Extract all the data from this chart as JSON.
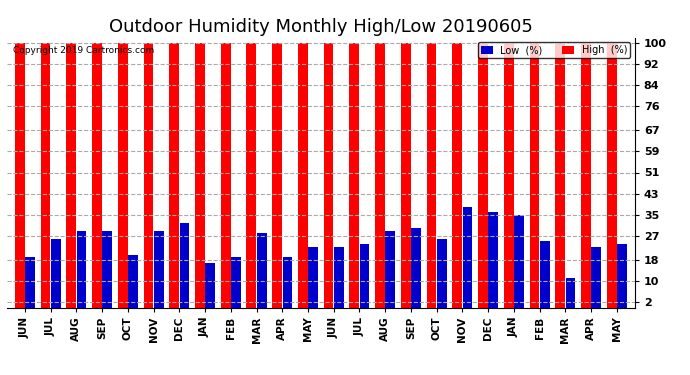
{
  "title": "Outdoor Humidity Monthly High/Low 20190605",
  "copyright": "Copyright 2019 Cartronics.com",
  "categories": [
    "JUN",
    "JUL",
    "AUG",
    "SEP",
    "OCT",
    "NOV",
    "DEC",
    "JAN",
    "FEB",
    "MAR",
    "APR",
    "MAY",
    "JUN",
    "JUL",
    "AUG",
    "SEP",
    "OCT",
    "NOV",
    "DEC",
    "JAN",
    "FEB",
    "MAR",
    "APR",
    "MAY"
  ],
  "high_values": [
    100,
    100,
    100,
    100,
    100,
    100,
    100,
    100,
    100,
    100,
    100,
    100,
    100,
    100,
    100,
    100,
    100,
    100,
    100,
    100,
    100,
    100,
    100,
    100
  ],
  "low_values": [
    19,
    26,
    29,
    29,
    20,
    29,
    32,
    17,
    19,
    28,
    19,
    23,
    23,
    24,
    29,
    30,
    26,
    38,
    36,
    35,
    25,
    11,
    23,
    24
  ],
  "high_color": "#ff0000",
  "low_color": "#0000cc",
  "background_color": "#ffffff",
  "yticks": [
    2,
    10,
    18,
    27,
    35,
    43,
    51,
    59,
    67,
    76,
    84,
    92,
    100
  ],
  "ylim": [
    0,
    102
  ],
  "grid_color": "#aaaaaa",
  "title_fontsize": 13,
  "legend_low_label": "Low  (%)",
  "legend_high_label": "High  (%)"
}
